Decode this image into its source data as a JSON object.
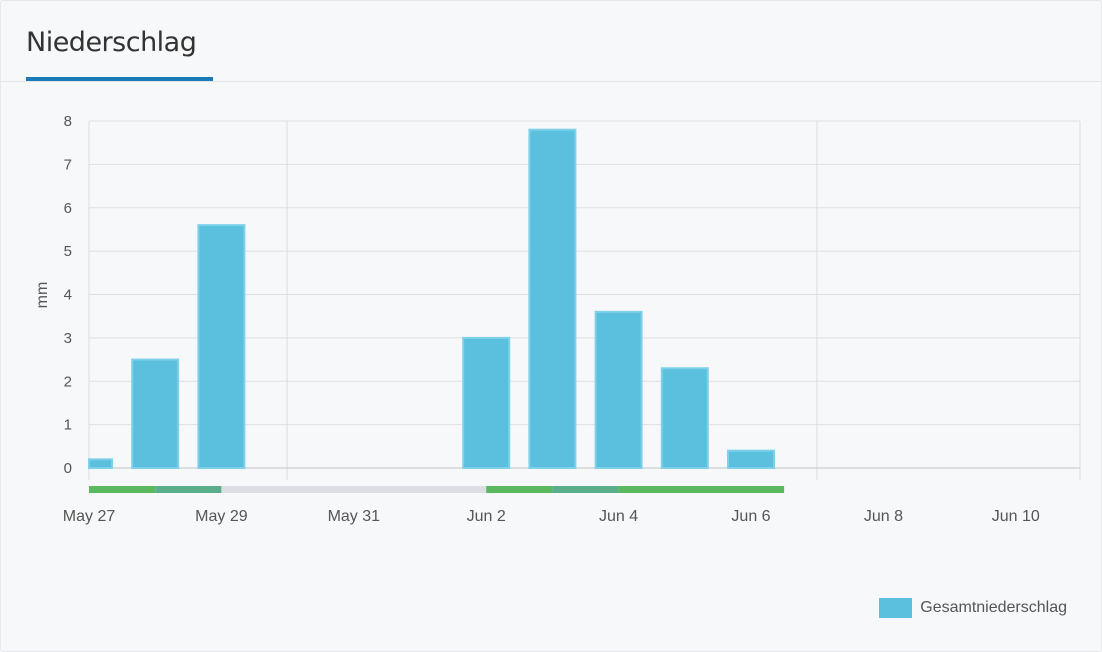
{
  "header": {
    "title": "Niederschlag"
  },
  "colors": {
    "bar": "#5bc0de",
    "bar_border": "#7fd0ea",
    "accent": "#1a7ab8",
    "strip_green": "#5cb85c",
    "strip_teal": "#5aae8c",
    "strip_gray": "#dcdee3"
  },
  "chart_data": {
    "type": "bar",
    "title": "Niederschlag",
    "ylabel": "mm",
    "ylim": [
      0,
      8
    ],
    "yticks": [
      0,
      1,
      2,
      3,
      4,
      5,
      6,
      7,
      8
    ],
    "x_tick_labels": [
      "May 27",
      "May 29",
      "May 31",
      "Jun 2",
      "Jun 4",
      "Jun 6",
      "Jun 8",
      "Jun 10"
    ],
    "series": [
      {
        "name": "Gesamtniederschlag",
        "points": [
          {
            "x": "May 27",
            "value": 0.2
          },
          {
            "x": "May 28",
            "value": 2.5
          },
          {
            "x": "May 29",
            "value": 5.6
          },
          {
            "x": "May 30",
            "value": 0
          },
          {
            "x": "May 31",
            "value": 0
          },
          {
            "x": "Jun 1",
            "value": 0
          },
          {
            "x": "Jun 2",
            "value": 3.0
          },
          {
            "x": "Jun 3",
            "value": 7.8
          },
          {
            "x": "Jun 4",
            "value": 3.6
          },
          {
            "x": "Jun 5",
            "value": 2.3
          },
          {
            "x": "Jun 6",
            "value": 0.4
          }
        ]
      }
    ],
    "status_strip": [
      {
        "from": "May 27",
        "to": "May 28",
        "status": "green"
      },
      {
        "from": "May 28",
        "to": "May 29",
        "status": "teal"
      },
      {
        "from": "May 29",
        "to": "Jun 2",
        "status": "gray"
      },
      {
        "from": "Jun 2",
        "to": "Jun 3",
        "status": "green"
      },
      {
        "from": "Jun 3",
        "to": "Jun 4",
        "status": "teal"
      },
      {
        "from": "Jun 4",
        "to": "Jun 6.5",
        "status": "green"
      }
    ],
    "grid": true,
    "legend_position": "bottom-right"
  }
}
